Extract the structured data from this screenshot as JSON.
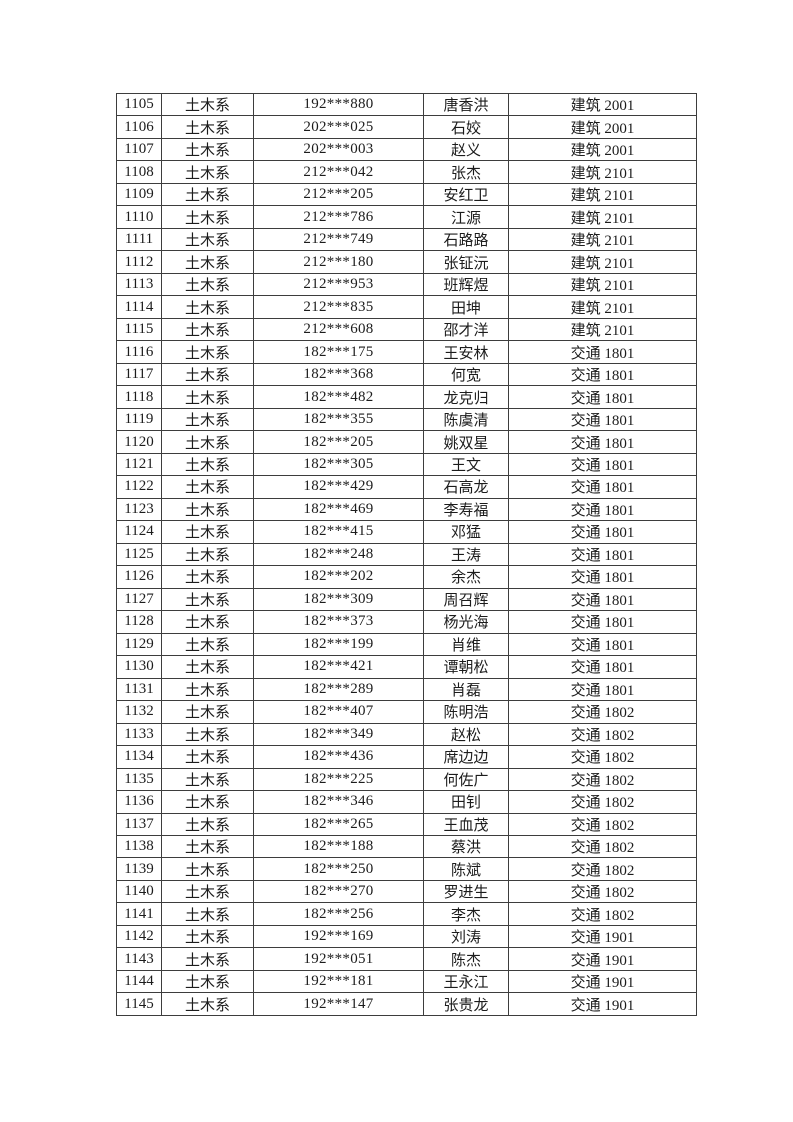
{
  "page": {
    "background_color": "#ffffff",
    "text_color": "#1c1c1c",
    "table_border_color": "#3d3d3d"
  },
  "table": {
    "rows": [
      {
        "no": "1105",
        "dept": "土木系",
        "sid": "192***880",
        "name": "唐香洪",
        "cls": "建筑 2001"
      },
      {
        "no": "1106",
        "dept": "土木系",
        "sid": "202***025",
        "name": "石姣",
        "cls": "建筑 2001"
      },
      {
        "no": "1107",
        "dept": "土木系",
        "sid": "202***003",
        "name": "赵义",
        "cls": "建筑 2001"
      },
      {
        "no": "1108",
        "dept": "土木系",
        "sid": "212***042",
        "name": "张杰",
        "cls": "建筑 2101"
      },
      {
        "no": "1109",
        "dept": "土木系",
        "sid": "212***205",
        "name": "安红卫",
        "cls": "建筑 2101"
      },
      {
        "no": "1110",
        "dept": "土木系",
        "sid": "212***786",
        "name": "江源",
        "cls": "建筑 2101"
      },
      {
        "no": "1111",
        "dept": "土木系",
        "sid": "212***749",
        "name": "石路路",
        "cls": "建筑 2101"
      },
      {
        "no": "1112",
        "dept": "土木系",
        "sid": "212***180",
        "name": "张钲沅",
        "cls": "建筑 2101"
      },
      {
        "no": "1113",
        "dept": "土木系",
        "sid": "212***953",
        "name": "班辉煜",
        "cls": "建筑 2101"
      },
      {
        "no": "1114",
        "dept": "土木系",
        "sid": "212***835",
        "name": "田坤",
        "cls": "建筑 2101"
      },
      {
        "no": "1115",
        "dept": "土木系",
        "sid": "212***608",
        "name": "邵才洋",
        "cls": "建筑 2101"
      },
      {
        "no": "1116",
        "dept": "土木系",
        "sid": "182***175",
        "name": "王安林",
        "cls": "交通 1801"
      },
      {
        "no": "1117",
        "dept": "土木系",
        "sid": "182***368",
        "name": "何宽",
        "cls": "交通 1801"
      },
      {
        "no": "1118",
        "dept": "土木系",
        "sid": "182***482",
        "name": "龙克归",
        "cls": "交通 1801"
      },
      {
        "no": "1119",
        "dept": "土木系",
        "sid": "182***355",
        "name": "陈虞清",
        "cls": "交通 1801"
      },
      {
        "no": "1120",
        "dept": "土木系",
        "sid": "182***205",
        "name": "姚双星",
        "cls": "交通 1801"
      },
      {
        "no": "1121",
        "dept": "土木系",
        "sid": "182***305",
        "name": "王文",
        "cls": "交通 1801"
      },
      {
        "no": "1122",
        "dept": "土木系",
        "sid": "182***429",
        "name": "石高龙",
        "cls": "交通 1801"
      },
      {
        "no": "1123",
        "dept": "土木系",
        "sid": "182***469",
        "name": "李寿福",
        "cls": "交通 1801"
      },
      {
        "no": "1124",
        "dept": "土木系",
        "sid": "182***415",
        "name": "邓猛",
        "cls": "交通 1801"
      },
      {
        "no": "1125",
        "dept": "土木系",
        "sid": "182***248",
        "name": "王涛",
        "cls": "交通 1801"
      },
      {
        "no": "1126",
        "dept": "土木系",
        "sid": "182***202",
        "name": "余杰",
        "cls": "交通 1801"
      },
      {
        "no": "1127",
        "dept": "土木系",
        "sid": "182***309",
        "name": "周召辉",
        "cls": "交通 1801"
      },
      {
        "no": "1128",
        "dept": "土木系",
        "sid": "182***373",
        "name": "杨光海",
        "cls": "交通 1801"
      },
      {
        "no": "1129",
        "dept": "土木系",
        "sid": "182***199",
        "name": "肖维",
        "cls": "交通 1801"
      },
      {
        "no": "1130",
        "dept": "土木系",
        "sid": "182***421",
        "name": "谭朝松",
        "cls": "交通 1801"
      },
      {
        "no": "1131",
        "dept": "土木系",
        "sid": "182***289",
        "name": "肖磊",
        "cls": "交通 1801"
      },
      {
        "no": "1132",
        "dept": "土木系",
        "sid": "182***407",
        "name": "陈明浩",
        "cls": "交通 1802"
      },
      {
        "no": "1133",
        "dept": "土木系",
        "sid": "182***349",
        "name": "赵松",
        "cls": "交通 1802"
      },
      {
        "no": "1134",
        "dept": "土木系",
        "sid": "182***436",
        "name": "席边边",
        "cls": "交通 1802"
      },
      {
        "no": "1135",
        "dept": "土木系",
        "sid": "182***225",
        "name": "何佐广",
        "cls": "交通 1802"
      },
      {
        "no": "1136",
        "dept": "土木系",
        "sid": "182***346",
        "name": "田钊",
        "cls": "交通 1802"
      },
      {
        "no": "1137",
        "dept": "土木系",
        "sid": "182***265",
        "name": "王血茂",
        "cls": "交通 1802"
      },
      {
        "no": "1138",
        "dept": "土木系",
        "sid": "182***188",
        "name": "蔡洪",
        "cls": "交通 1802"
      },
      {
        "no": "1139",
        "dept": "土木系",
        "sid": "182***250",
        "name": "陈斌",
        "cls": "交通 1802"
      },
      {
        "no": "1140",
        "dept": "土木系",
        "sid": "182***270",
        "name": "罗进生",
        "cls": "交通 1802"
      },
      {
        "no": "1141",
        "dept": "土木系",
        "sid": "182***256",
        "name": "李杰",
        "cls": "交通 1802"
      },
      {
        "no": "1142",
        "dept": "土木系",
        "sid": "192***169",
        "name": "刘涛",
        "cls": "交通 1901"
      },
      {
        "no": "1143",
        "dept": "土木系",
        "sid": "192***051",
        "name": "陈杰",
        "cls": "交通 1901"
      },
      {
        "no": "1144",
        "dept": "土木系",
        "sid": "192***181",
        "name": "王永江",
        "cls": "交通 1901"
      },
      {
        "no": "1145",
        "dept": "土木系",
        "sid": "192***147",
        "name": "张贵龙",
        "cls": "交通 1901"
      }
    ]
  }
}
